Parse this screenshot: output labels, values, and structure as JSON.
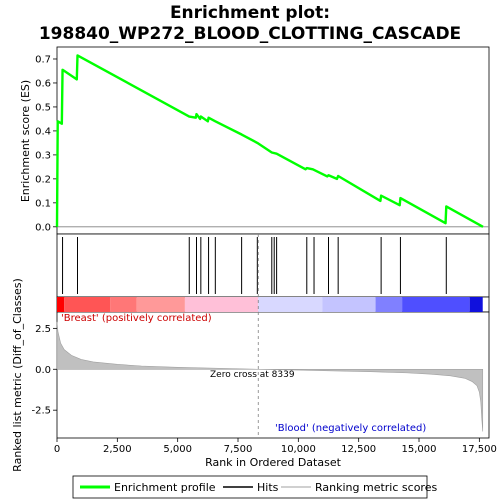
{
  "chart_data": {
    "type": "line",
    "title_line1": "Enrichment plot:",
    "title_line2": "198840_WP272_BLOOD_CLOTTING_CASCADE",
    "xlabel": "Rank in Ordered Dataset",
    "ylabel_top": "Enrichment score (ES)",
    "ylabel_bottom": "Ranked list metric (Diff_of_Classes)",
    "xlim": [
      0,
      17900
    ],
    "x_ticks": [
      0,
      2500,
      5000,
      7500,
      10000,
      12500,
      15000,
      17500
    ],
    "x_tick_labels": [
      "0",
      "2,500",
      "5,000",
      "7,500",
      "10,000",
      "12,500",
      "15,000",
      "17,500"
    ],
    "es_ylim": [
      -0.03,
      0.75
    ],
    "es_ticks": [
      0.0,
      0.1,
      0.2,
      0.3,
      0.4,
      0.5,
      0.6,
      0.7
    ],
    "es_tick_labels": [
      "0.0",
      "0.1",
      "0.2",
      "0.3",
      "0.4",
      "0.5",
      "0.6",
      "0.7"
    ],
    "metric_ylim": [
      -4.2,
      3.5
    ],
    "metric_ticks": [
      2.5,
      0.0,
      -2.5
    ],
    "metric_tick_labels": [
      "2.5",
      "0.0",
      "-2.5"
    ],
    "enrichment_profile": {
      "name": "Enrichment profile",
      "color": "#00ff00",
      "points": [
        [
          0,
          0.0
        ],
        [
          30,
          0.44
        ],
        [
          200,
          0.43
        ],
        [
          230,
          0.655
        ],
        [
          820,
          0.615
        ],
        [
          850,
          0.715
        ],
        [
          5480,
          0.46
        ],
        [
          5750,
          0.455
        ],
        [
          5780,
          0.47
        ],
        [
          5930,
          0.45
        ],
        [
          5960,
          0.46
        ],
        [
          6250,
          0.44
        ],
        [
          6280,
          0.455
        ],
        [
          6560,
          0.44
        ],
        [
          7650,
          0.385
        ],
        [
          8300,
          0.35
        ],
        [
          8900,
          0.31
        ],
        [
          9100,
          0.305
        ],
        [
          10300,
          0.24
        ],
        [
          10350,
          0.245
        ],
        [
          10600,
          0.24
        ],
        [
          11200,
          0.21
        ],
        [
          11250,
          0.215
        ],
        [
          11600,
          0.2
        ],
        [
          11650,
          0.212
        ],
        [
          13400,
          0.108
        ],
        [
          13430,
          0.13
        ],
        [
          14200,
          0.09
        ],
        [
          14230,
          0.12
        ],
        [
          16100,
          0.015
        ],
        [
          16130,
          0.085
        ],
        [
          17650,
          0.0
        ]
      ]
    },
    "hits": [
      230,
      850,
      5480,
      5780,
      5960,
      6280,
      6560,
      7650,
      8300,
      8900,
      9000,
      9100,
      10350,
      10650,
      11250,
      11650,
      13430,
      14230,
      16130
    ],
    "metric": {
      "name": "Ranking metric scores",
      "color": "#c0c0c0",
      "points": [
        [
          0,
          2.9
        ],
        [
          40,
          2.3
        ],
        [
          150,
          1.6
        ],
        [
          300,
          1.2
        ],
        [
          600,
          0.85
        ],
        [
          1000,
          0.6
        ],
        [
          1500,
          0.45
        ],
        [
          2500,
          0.3
        ],
        [
          3500,
          0.2
        ],
        [
          5000,
          0.12
        ],
        [
          6500,
          0.07
        ],
        [
          8339,
          0.0
        ],
        [
          10000,
          -0.05
        ],
        [
          11500,
          -0.1
        ],
        [
          13000,
          -0.15
        ],
        [
          14500,
          -0.22
        ],
        [
          15500,
          -0.3
        ],
        [
          16300,
          -0.4
        ],
        [
          16900,
          -0.55
        ],
        [
          17200,
          -0.75
        ],
        [
          17400,
          -1.0
        ],
        [
          17500,
          -1.4
        ],
        [
          17560,
          -2.0
        ],
        [
          17600,
          -3.0
        ],
        [
          17640,
          -3.8
        ]
      ]
    },
    "colorbar": [
      {
        "from": 0,
        "to": 300,
        "color": "#ff0000"
      },
      {
        "from": 300,
        "to": 2200,
        "color": "#ff5555"
      },
      {
        "from": 2200,
        "to": 3300,
        "color": "#ff7777"
      },
      {
        "from": 3300,
        "to": 5300,
        "color": "#ff9999"
      },
      {
        "from": 5300,
        "to": 8339,
        "color": "#ffc0d8"
      },
      {
        "from": 8339,
        "to": 11000,
        "color": "#d8d8ff"
      },
      {
        "from": 11000,
        "to": 13200,
        "color": "#c4c4ff"
      },
      {
        "from": 13200,
        "to": 14300,
        "color": "#8080ff"
      },
      {
        "from": 14300,
        "to": 17100,
        "color": "#4f4fff"
      },
      {
        "from": 17100,
        "to": 17640,
        "color": "#1010dd"
      }
    ],
    "zero_cross": 8339,
    "annotations": {
      "positive": "'Breast' (positively correlated)",
      "negative": "'Blood' (negatively correlated)",
      "zero_cross": "Zero cross at 8339"
    },
    "legend": [
      {
        "label": "Enrichment profile",
        "color": "#00ff00"
      },
      {
        "label": "Hits",
        "color": "#000000"
      },
      {
        "label": "Ranking metric scores",
        "color": "#c0c0c0"
      }
    ],
    "legend_position": "bottom"
  }
}
